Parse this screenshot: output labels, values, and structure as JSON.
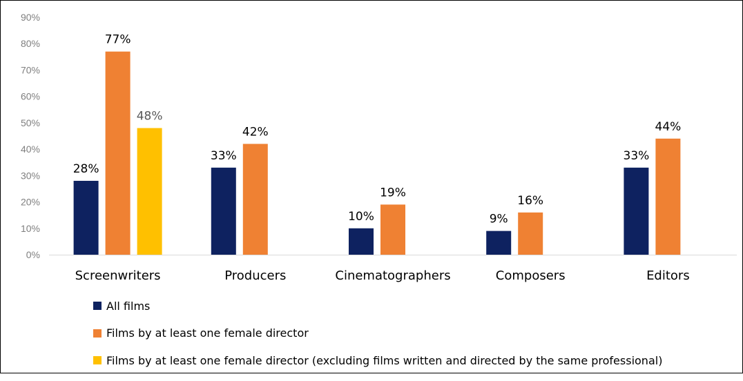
{
  "chart_data": {
    "type": "bar",
    "title": "",
    "xlabel": "",
    "ylabel": "",
    "ylim": [
      0,
      90
    ],
    "yticks": [
      0,
      10,
      20,
      30,
      40,
      50,
      60,
      70,
      80,
      90
    ],
    "ytick_labels": [
      "0%",
      "10%",
      "20%",
      "30%",
      "40%",
      "50%",
      "60%",
      "70%",
      "80%",
      "90%"
    ],
    "grid": false,
    "legend_position": "bottom-left",
    "categories": [
      "Screenwriters",
      "Producers",
      "Cinematographers",
      "Composers",
      "Editors"
    ],
    "series": [
      {
        "name": "All films",
        "color": "#0e2260",
        "values": [
          28,
          33,
          10,
          9,
          33
        ],
        "labels": [
          "28%",
          "33%",
          "10%",
          "9%",
          "33%"
        ],
        "label_color": "#000000"
      },
      {
        "name": "Films by at least one female director",
        "color": "#ef8133",
        "values": [
          77,
          42,
          19,
          16,
          44
        ],
        "labels": [
          "77%",
          "42%",
          "19%",
          "16%",
          "44%"
        ],
        "label_color": "#000000"
      },
      {
        "name": "Films by at least one female director (excluding films written and directed by the same professional)",
        "color": "#ffc000",
        "values": [
          48,
          null,
          null,
          null,
          null
        ],
        "labels": [
          "48%",
          null,
          null,
          null,
          null
        ],
        "label_color": "#595959"
      }
    ]
  }
}
